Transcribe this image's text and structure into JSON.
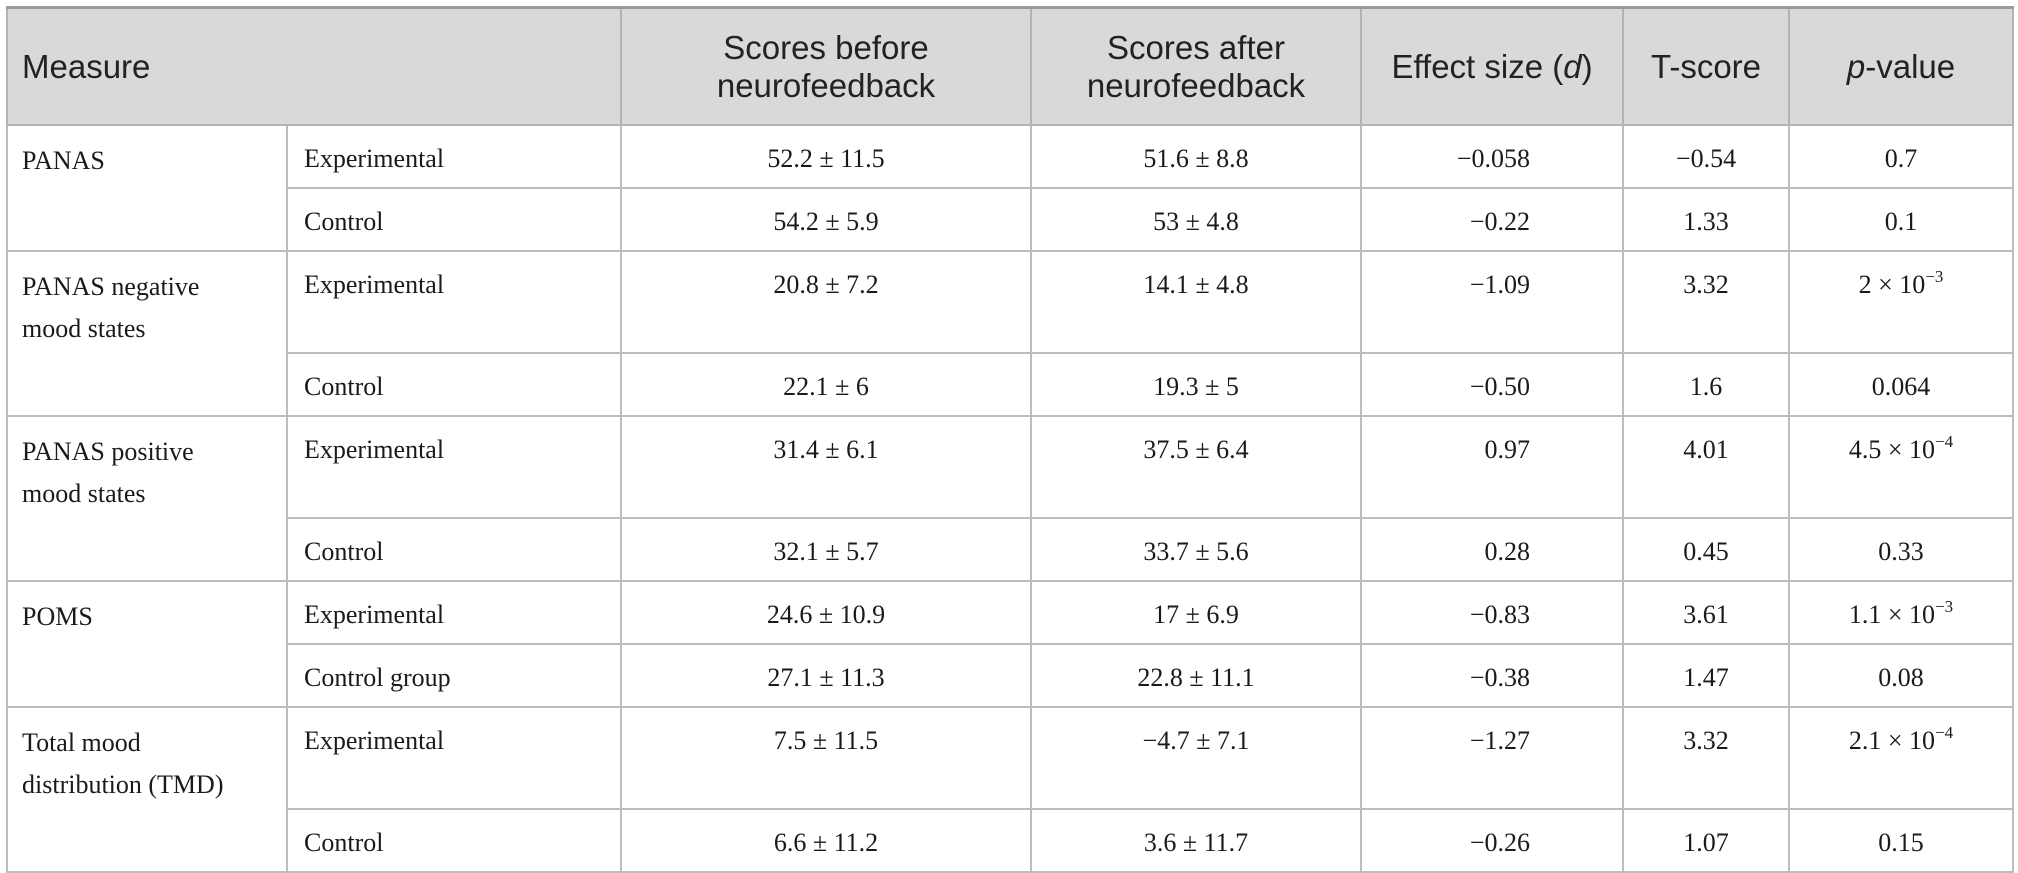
{
  "headers": {
    "measure": "Measure",
    "before_line1": "Scores before",
    "before_line2": "neurofeedback",
    "after_line1": "Scores after",
    "after_line2": "neurofeedback",
    "effect_prefix": "Effect size (",
    "effect_var": "d",
    "effect_suffix": ")",
    "tscore": "T-score",
    "pvalue_var": "p",
    "pvalue_suffix": "-value"
  },
  "groups": [
    {
      "measure_line1": "PANAS",
      "measure_line2": "",
      "rows": [
        {
          "group": "Experimental",
          "before": "52.2 ± 11.5",
          "after": "51.6 ± 8.8",
          "effect": "−0.058",
          "t": "−0.54",
          "p": "0.7",
          "p_exp": ""
        },
        {
          "group": "Control",
          "before": "54.2 ± 5.9",
          "after": "53 ± 4.8",
          "effect": "−0.22",
          "t": "1.33",
          "p": "0.1",
          "p_exp": ""
        }
      ]
    },
    {
      "measure_line1": "PANAS negative",
      "measure_line2": "mood states",
      "rows": [
        {
          "group": "Experimental",
          "before": "20.8 ± 7.2",
          "after": "14.1 ± 4.8",
          "effect": "−1.09",
          "t": "3.32",
          "p": "2 × 10",
          "p_exp": "−3"
        },
        {
          "group": "Control",
          "before": "22.1 ± 6",
          "after": "19.3 ± 5",
          "effect": "−0.50",
          "t": "1.6",
          "p": "0.064",
          "p_exp": ""
        }
      ]
    },
    {
      "measure_line1": "PANAS positive",
      "measure_line2": "mood states",
      "rows": [
        {
          "group": "Experimental",
          "before": "31.4 ± 6.1",
          "after": "37.5 ± 6.4",
          "effect": "0.97",
          "t": "4.01",
          "p": "4.5 × 10",
          "p_exp": "−4"
        },
        {
          "group": "Control",
          "before": "32.1 ± 5.7",
          "after": "33.7 ± 5.6",
          "effect": "0.28",
          "t": "0.45",
          "p": "0.33",
          "p_exp": ""
        }
      ]
    },
    {
      "measure_line1": "POMS",
      "measure_line2": "",
      "rows": [
        {
          "group": "Experimental",
          "before": "24.6 ± 10.9",
          "after": "17 ± 6.9",
          "effect": "−0.83",
          "t": "3.61",
          "p": "1.1 × 10",
          "p_exp": "−3"
        },
        {
          "group": "Control group",
          "before": "27.1 ± 11.3",
          "after": "22.8 ± 11.1",
          "effect": "−0.38",
          "t": "1.47",
          "p": "0.08",
          "p_exp": ""
        }
      ]
    },
    {
      "measure_line1": "Total mood",
      "measure_line2": "distribution (TMD)",
      "rows": [
        {
          "group": "Experimental",
          "before": "7.5 ± 11.5",
          "after": "−4.7 ± 7.1",
          "effect": "−1.27",
          "t": "3.32",
          "p": "2.1 × 10",
          "p_exp": "−4"
        },
        {
          "group": "Control",
          "before": "6.6 ± 11.2",
          "after": "3.6 ± 11.7",
          "effect": "−0.26",
          "t": "1.07",
          "p": "0.15",
          "p_exp": ""
        }
      ]
    }
  ]
}
